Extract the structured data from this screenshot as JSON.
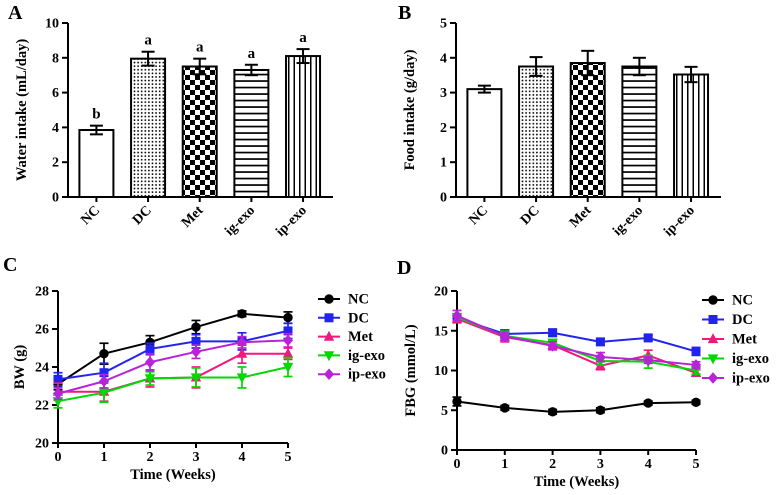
{
  "chart_data": [
    {
      "panel_label": "A",
      "type": "bar",
      "xlabel": "",
      "ylabel": "Water intake (mL/day)",
      "ylim": [
        0,
        10
      ],
      "ytick_step": 2,
      "grid": false,
      "categories": [
        "NC",
        "DC",
        "Met",
        "ig-exo",
        "ip-exo"
      ],
      "values": [
        3.85,
        7.95,
        7.5,
        7.3,
        8.1
      ],
      "errors": [
        0.25,
        0.4,
        0.45,
        0.3,
        0.4
      ],
      "bar_annotations": [
        "b",
        "a",
        "a",
        "a",
        "a"
      ],
      "bar_patterns": [
        "plain",
        "dots",
        "checker",
        "hlines",
        "vlines"
      ],
      "bar_outline_color": "#000000"
    },
    {
      "panel_label": "B",
      "type": "bar",
      "xlabel": "",
      "ylabel": "Food intake (g/day)",
      "ylim": [
        0,
        5
      ],
      "ytick_step": 1,
      "grid": false,
      "categories": [
        "NC",
        "DC",
        "Met",
        "ig-exo",
        "ip-exo"
      ],
      "values": [
        3.1,
        3.75,
        3.85,
        3.75,
        3.52
      ],
      "errors": [
        0.1,
        0.27,
        0.35,
        0.25,
        0.22
      ],
      "bar_annotations": [
        "",
        "",
        "",
        "",
        ""
      ],
      "bar_patterns": [
        "plain",
        "dots",
        "checker",
        "hlines",
        "vlines"
      ],
      "bar_outline_color": "#000000"
    },
    {
      "panel_label": "C",
      "type": "line",
      "xlabel": "Time (Weeks)",
      "ylabel": "BW (g)",
      "ylim": [
        20,
        28
      ],
      "ytick_step": 2,
      "grid": false,
      "legend_position": "right",
      "x": [
        0,
        1,
        2,
        3,
        4,
        5
      ],
      "series": [
        {
          "name": "NC",
          "color": "#000000",
          "marker": "circle",
          "values": [
            23.1,
            24.7,
            25.3,
            26.1,
            26.8,
            26.6
          ],
          "errors": [
            0.3,
            0.55,
            0.35,
            0.35,
            0.15,
            0.3
          ]
        },
        {
          "name": "DC",
          "color": "#2323ee",
          "marker": "square",
          "values": [
            23.35,
            23.7,
            24.95,
            25.35,
            25.35,
            25.9
          ],
          "errors": [
            0.35,
            0.5,
            0.3,
            0.35,
            0.45,
            0.4
          ]
        },
        {
          "name": "Met",
          "color": "#f2187d",
          "marker": "triangle-up",
          "values": [
            22.7,
            22.7,
            23.4,
            23.45,
            24.7,
            24.7
          ],
          "errors": [
            0.45,
            0.5,
            0.45,
            0.55,
            0.5,
            0.3
          ]
        },
        {
          "name": "ig-exo",
          "color": "#00d900",
          "marker": "triangle-down",
          "values": [
            22.2,
            22.65,
            23.4,
            23.45,
            23.45,
            24.0
          ],
          "errors": [
            0.35,
            0.5,
            0.35,
            0.5,
            0.55,
            0.5
          ]
        },
        {
          "name": "ip-exo",
          "color": "#b823d9",
          "marker": "diamond",
          "values": [
            22.6,
            23.25,
            24.25,
            24.8,
            25.3,
            25.4
          ],
          "errors": [
            0.3,
            0.35,
            0.45,
            0.35,
            0.3,
            0.35
          ]
        }
      ]
    },
    {
      "panel_label": "D",
      "type": "line",
      "xlabel": "Time (Weeks)",
      "ylabel": "FBG (mmol/L)",
      "ylim": [
        0,
        20
      ],
      "ytick_step": 5,
      "grid": false,
      "legend_position": "right",
      "x": [
        0,
        1,
        2,
        3,
        4,
        5
      ],
      "series": [
        {
          "name": "NC",
          "color": "#000000",
          "marker": "circle",
          "values": [
            6.1,
            5.3,
            4.8,
            5.0,
            5.9,
            6.0
          ],
          "errors": [
            0.55,
            0.3,
            0.3,
            0.3,
            0.25,
            0.25
          ]
        },
        {
          "name": "DC",
          "color": "#2323ee",
          "marker": "square",
          "values": [
            16.6,
            14.6,
            14.75,
            13.6,
            14.1,
            12.4
          ],
          "errors": [
            0.5,
            0.5,
            0.45,
            0.4,
            0.35,
            0.5
          ]
        },
        {
          "name": "Met",
          "color": "#f2187d",
          "marker": "triangle-up",
          "values": [
            16.5,
            14.2,
            13.2,
            10.6,
            11.9,
            9.7
          ],
          "errors": [
            0.5,
            0.6,
            0.5,
            0.5,
            0.65,
            0.4
          ]
        },
        {
          "name": "ig-exo",
          "color": "#00d900",
          "marker": "triangle-down",
          "values": [
            16.7,
            14.35,
            13.5,
            11.2,
            11.1,
            10.0
          ],
          "errors": [
            0.45,
            0.6,
            0.4,
            0.5,
            0.8,
            0.45
          ]
        },
        {
          "name": "ip-exo",
          "color": "#b823d9",
          "marker": "diamond",
          "values": [
            16.9,
            14.3,
            13.1,
            11.7,
            11.3,
            10.7
          ],
          "errors": [
            0.65,
            0.5,
            0.5,
            0.55,
            0.4,
            0.4
          ]
        }
      ]
    }
  ]
}
